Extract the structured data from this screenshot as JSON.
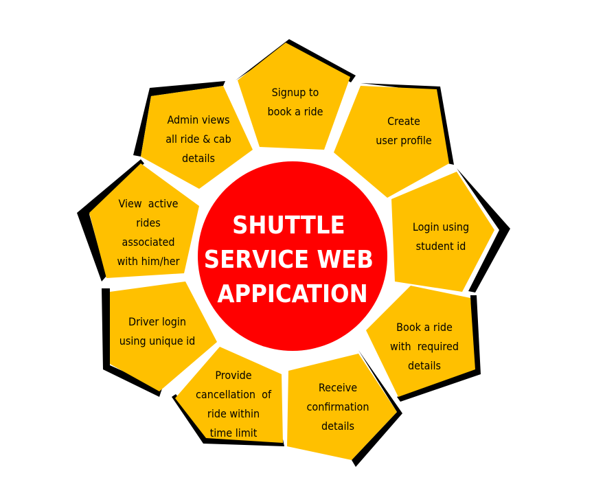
{
  "center": {
    "lines": [
      "SHUTTLE",
      "SERVICE WEB",
      "APPICATION"
    ]
  },
  "colors": {
    "petal_fill": "#FFC000",
    "petal_border": "#000000",
    "center_fill": "#FF0000",
    "center_text": "#FFFFFF"
  },
  "steps": [
    {
      "lines": [
        "Signup to",
        "book a ride"
      ]
    },
    {
      "lines": [
        "Create",
        "user profile"
      ]
    },
    {
      "lines": [
        "Login using",
        "student id"
      ]
    },
    {
      "lines": [
        "Book a ride",
        "with  required",
        "details"
      ]
    },
    {
      "lines": [
        "Receive",
        "confirmation",
        "details"
      ]
    },
    {
      "lines": [
        "Provide",
        "cancellation  of",
        "ride within",
        "time limit"
      ]
    },
    {
      "lines": [
        "Driver login",
        "using unique id"
      ]
    },
    {
      "lines": [
        "View  active",
        "rides",
        "associated",
        "with him/her"
      ]
    },
    {
      "lines": [
        "Admin views",
        "all ride & cab",
        "details"
      ]
    }
  ]
}
